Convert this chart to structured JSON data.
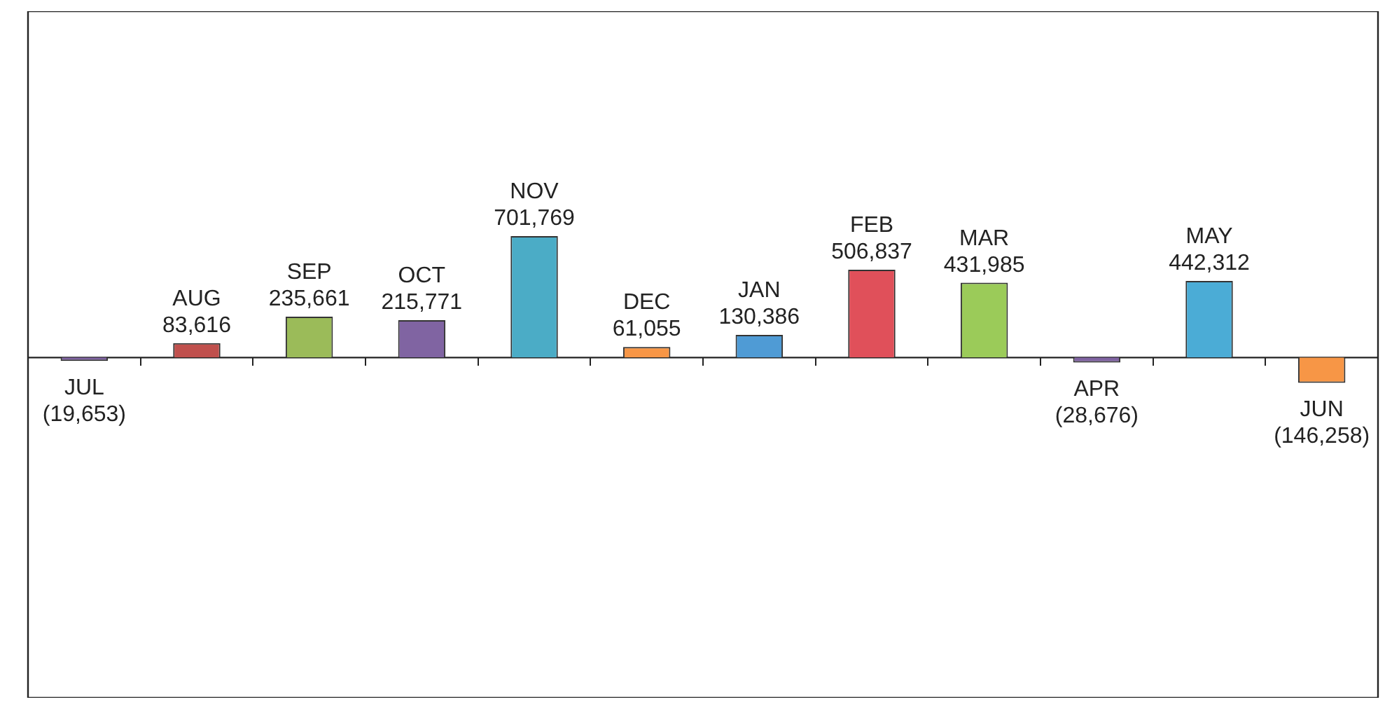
{
  "chart_data": {
    "type": "bar",
    "categories": [
      "JUL",
      "AUG",
      "SEP",
      "OCT",
      "NOV",
      "DEC",
      "JAN",
      "FEB",
      "MAR",
      "APR",
      "MAY",
      "JUN"
    ],
    "values": [
      -19653,
      83616,
      235661,
      215771,
      701769,
      61055,
      130386,
      506837,
      431985,
      -28676,
      442312,
      -146258
    ],
    "colors": [
      "#8064a2",
      "#c0504d",
      "#9bbb59",
      "#8064a2",
      "#4bacc6",
      "#f79646",
      "#4f9bd5",
      "#e0505a",
      "#9bcb59",
      "#8064a2",
      "#4bacd6",
      "#f79646"
    ],
    "value_labels": [
      "(19,653)",
      "83,616",
      "235,661",
      "215,771",
      "701,769",
      "61,055",
      "130,386",
      "506,837",
      "431,985",
      "(28,676)",
      "442,312",
      "(146,258)"
    ]
  }
}
